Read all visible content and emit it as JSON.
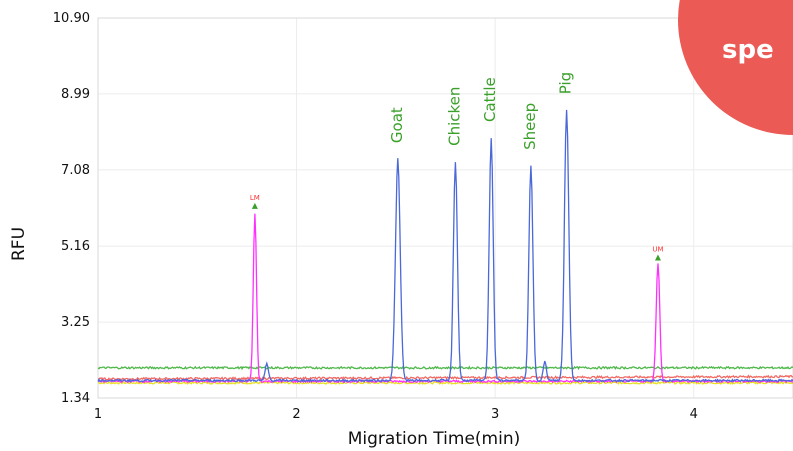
{
  "badge": {
    "text": "spe",
    "color": "#eb5a55"
  },
  "chart_data": {
    "type": "line",
    "title": "",
    "xlabel": "Migration Time(min)",
    "ylabel": "RFU",
    "xlim": [
      1,
      4.5
    ],
    "ylim": [
      1.34,
      10.9
    ],
    "x_ticks": [
      "1",
      "2",
      "3",
      "4"
    ],
    "y_ticks": [
      "1.34",
      "3.25",
      "5.16",
      "7.08",
      "8.99",
      "10.90"
    ],
    "grid": true,
    "peak_labels": [
      {
        "text": "Goat",
        "x": 2.51
      },
      {
        "text": "Chicken",
        "x": 2.8
      },
      {
        "text": "Cattle",
        "x": 2.98
      },
      {
        "text": "Sheep",
        "x": 3.18
      },
      {
        "text": "Pig",
        "x": 3.36
      }
    ],
    "markers": [
      {
        "text": "LM",
        "x": 1.79,
        "peak": 6.2
      },
      {
        "text": "UM",
        "x": 3.82,
        "peak": 4.9
      }
    ],
    "series": [
      {
        "color": "#4a68d8",
        "baseline": 1.78,
        "peaks": [
          {
            "x": 2.51,
            "height": 7.35,
            "width": 0.012
          },
          {
            "x": 2.8,
            "height": 7.28,
            "width": 0.01
          },
          {
            "x": 2.98,
            "height": 7.88,
            "width": 0.01
          },
          {
            "x": 3.18,
            "height": 7.18,
            "width": 0.01
          },
          {
            "x": 3.36,
            "height": 8.58,
            "width": 0.011
          },
          {
            "x": 1.85,
            "height": 2.2,
            "width": 0.008
          },
          {
            "x": 3.25,
            "height": 2.25,
            "width": 0.008
          }
        ]
      },
      {
        "color": "#e8e020",
        "baseline": 1.72,
        "peaks": []
      },
      {
        "color": "#ff30ff",
        "baseline": 1.76,
        "peaks": [
          {
            "x": 1.79,
            "height": 6.0,
            "width": 0.008
          },
          {
            "x": 3.82,
            "height": 4.75,
            "width": 0.009
          }
        ]
      },
      {
        "color": "#f06a62",
        "baseline_start": 1.82,
        "baseline_end": 1.88,
        "peaks": []
      },
      {
        "color": "#4fb84a",
        "baseline": 2.1,
        "peaks": []
      }
    ]
  }
}
